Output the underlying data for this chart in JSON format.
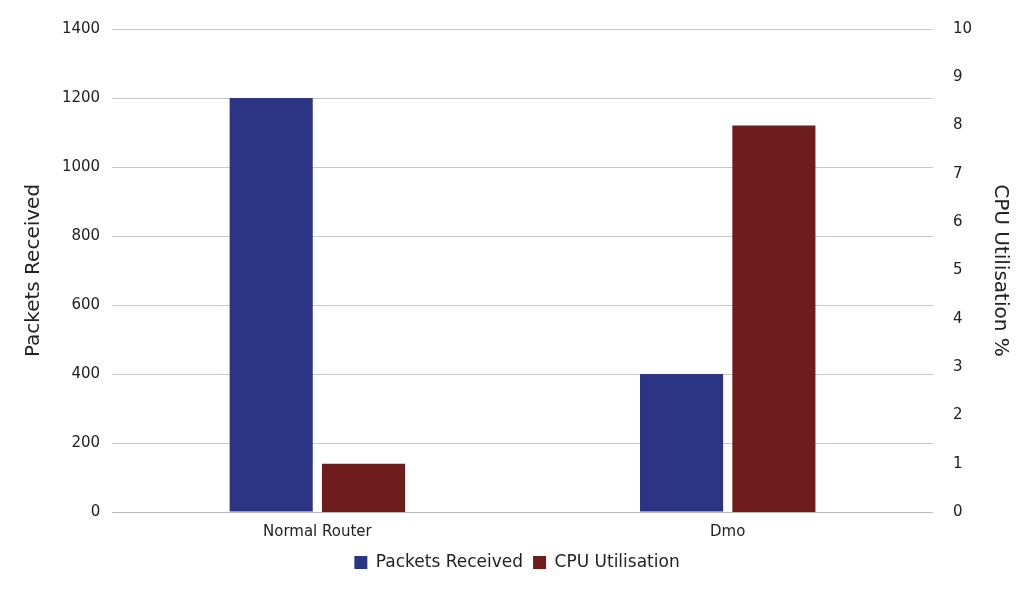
{
  "chart_data": {
    "type": "bar",
    "categories": [
      "Normal Router",
      "Dmo"
    ],
    "series": [
      {
        "name": "Packets Received",
        "color": "#2b3584",
        "values": [
          1200,
          400
        ]
      },
      {
        "name": "CPU Utilisation",
        "color": "#6e1c1c",
        "values": [
          1,
          8
        ],
        "axis": "y2"
      }
    ],
    "ylabel": "Packets Received",
    "y2label": "CPU Utilisation %",
    "ylim": [
      0,
      1400
    ],
    "yticks": [
      0,
      200,
      400,
      600,
      800,
      1000,
      1200,
      1400
    ],
    "y2lim": [
      0,
      10
    ],
    "y2ticks": [
      0,
      1,
      2,
      3,
      4,
      5,
      6,
      7,
      8,
      9,
      10
    ],
    "grid": "y",
    "legend": "bottom"
  }
}
